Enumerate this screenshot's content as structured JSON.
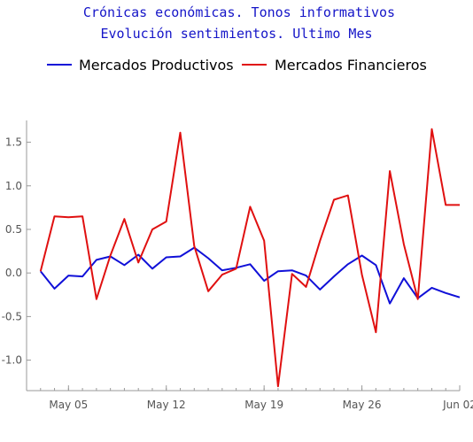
{
  "chart_data": {
    "type": "line",
    "title_lines": [
      "Crónicas económicas. Tonos informativos",
      "Evolución sentimientos. Ultimo Mes"
    ],
    "xlabel": "",
    "ylabel": "",
    "x": [
      "2018-05-03",
      "2018-05-04",
      "2018-05-05",
      "2018-05-06",
      "2018-05-07",
      "2018-05-08",
      "2018-05-09",
      "2018-05-10",
      "2018-05-11",
      "2018-05-12",
      "2018-05-13",
      "2018-05-14",
      "2018-05-15",
      "2018-05-16",
      "2018-05-17",
      "2018-05-18",
      "2018-05-19",
      "2018-05-20",
      "2018-05-21",
      "2018-05-22",
      "2018-05-23",
      "2018-05-24",
      "2018-05-25",
      "2018-05-26",
      "2018-05-27",
      "2018-05-28",
      "2018-05-29",
      "2018-05-30",
      "2018-05-31",
      "2018-06-01",
      "2018-06-02"
    ],
    "x_ticks": [
      "May 05",
      "May 12",
      "May 19",
      "May 26",
      "Jun 02"
    ],
    "x_tick_dates": [
      "2018-05-05",
      "2018-05-12",
      "2018-05-19",
      "2018-05-26",
      "2018-06-02"
    ],
    "y_ticks": [
      "-1.0",
      "-0.5",
      "0.0",
      "0.5",
      "1.0",
      "1.5"
    ],
    "y_tick_values": [
      -1.0,
      -0.5,
      0.0,
      0.5,
      1.0,
      1.5
    ],
    "ylim": [
      -1.35,
      1.75
    ],
    "xlim": [
      "2018-05-02",
      "2018-06-02"
    ],
    "grid": false,
    "legend_position": "top",
    "series": [
      {
        "name": "Mercados Productivos",
        "color": "#1010d8",
        "values": [
          0.02,
          -0.18,
          -0.03,
          -0.04,
          0.15,
          0.19,
          0.09,
          0.21,
          0.05,
          0.18,
          0.19,
          0.29,
          0.17,
          0.03,
          0.06,
          0.1,
          -0.09,
          0.02,
          0.03,
          -0.03,
          -0.19,
          -0.04,
          0.1,
          0.2,
          0.09,
          -0.35,
          -0.06,
          -0.29,
          -0.17,
          -0.23,
          -0.28
        ]
      },
      {
        "name": "Mercados Financieros",
        "color": "#e01010",
        "values": [
          0.02,
          0.65,
          0.64,
          0.65,
          -0.3,
          0.2,
          0.62,
          0.12,
          0.5,
          0.59,
          1.61,
          0.31,
          -0.21,
          -0.02,
          0.05,
          0.76,
          0.37,
          -1.3,
          -0.01,
          -0.16,
          0.37,
          0.84,
          0.89,
          -0.02,
          -0.68,
          1.17,
          0.33,
          -0.3,
          1.65,
          0.78,
          0.78
        ]
      }
    ]
  }
}
